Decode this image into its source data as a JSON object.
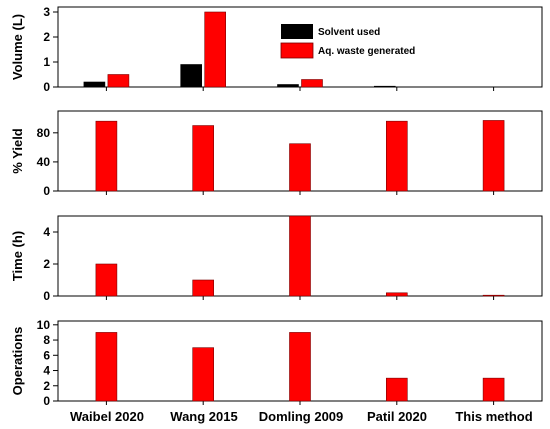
{
  "chart_data": {
    "type": "bar",
    "categories": [
      "Waibel 2020",
      "Wang 2015",
      "Domling 2009",
      "Patil 2020",
      "This method"
    ],
    "legend": {
      "placement": "top-right"
    },
    "colors": {
      "solvent": "#000000",
      "waste": "#ff0000",
      "waste_edge": "#7a0000"
    },
    "panels": [
      {
        "ylabel": "Volume (L)",
        "ylim": [
          0,
          3.2
        ],
        "yticks": [
          0,
          1,
          2,
          3
        ],
        "series": [
          {
            "name": "Solvent used",
            "color": "#000000",
            "values": [
              0.2,
              0.9,
              0.1,
              0.02,
              0
            ]
          },
          {
            "name": "Aq. waste generated",
            "color": "#ff0000",
            "values": [
              0.5,
              3.0,
              0.3,
              0,
              0
            ]
          }
        ]
      },
      {
        "ylabel": "% Yield",
        "ylim": [
          0,
          110
        ],
        "yticks": [
          0,
          40,
          80
        ],
        "series": [
          {
            "color": "#ff0000",
            "values": [
              96,
              90,
              65,
              96,
              97
            ]
          }
        ]
      },
      {
        "ylabel": "Time (h)",
        "ylim": [
          0,
          5
        ],
        "yticks": [
          0,
          2,
          4
        ],
        "series": [
          {
            "color": "#ff0000",
            "values": [
              2,
              1,
              5,
              0.2,
              0.05
            ]
          }
        ]
      },
      {
        "ylabel": "Operations",
        "ylim": [
          0,
          10.5
        ],
        "yticks": [
          0,
          2,
          4,
          6,
          8,
          10
        ],
        "series": [
          {
            "color": "#ff0000",
            "values": [
              9,
              7,
              9,
              3,
              3
            ]
          }
        ]
      }
    ]
  }
}
